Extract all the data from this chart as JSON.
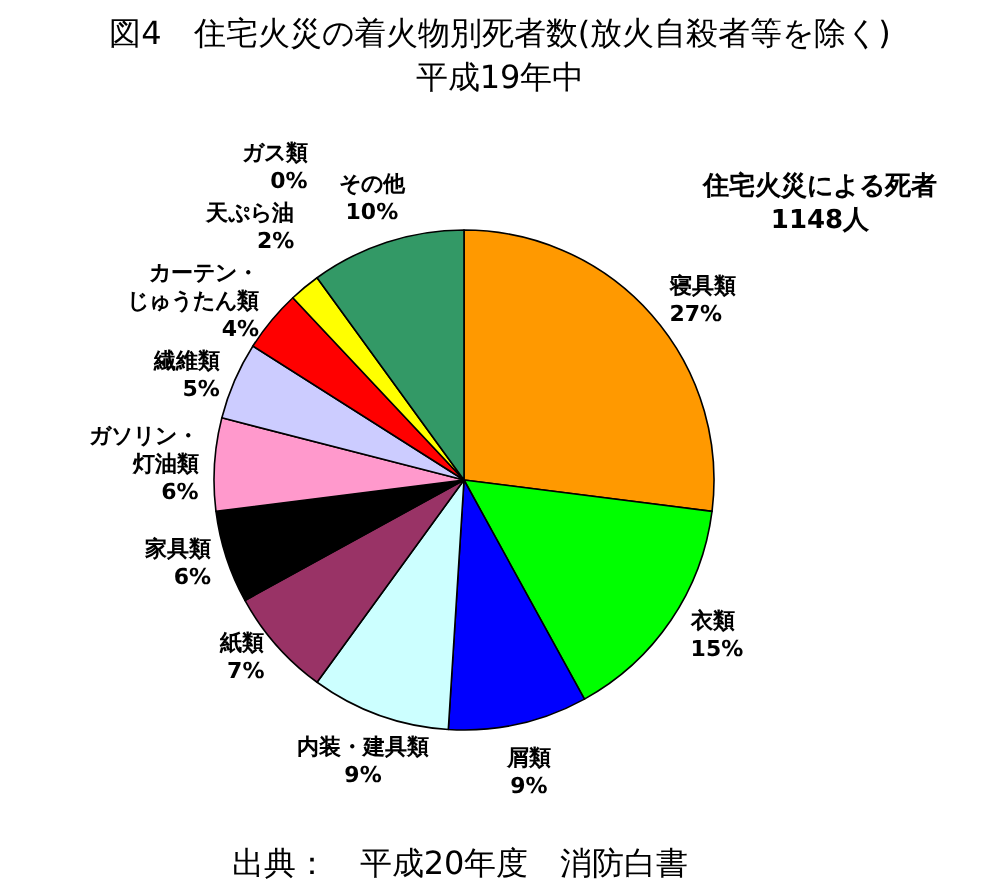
{
  "chart_data": {
    "type": "pie",
    "title": "図4　住宅火災の着火物別死者数(放火自殺者等を除く)",
    "subtitle": "平成19年中",
    "categories": [
      "寝具類",
      "衣類",
      "屑類",
      "内装・建具類",
      "紙類",
      "家具類",
      "ガソリン・灯油類",
      "繊維類",
      "カーテン・じゅうたん類",
      "天ぷら油",
      "ガス類",
      "その他"
    ],
    "values": [
      27,
      15,
      9,
      9,
      7,
      6,
      6,
      5,
      4,
      2,
      0,
      10
    ],
    "colors": [
      "#ff9900",
      "#00ff00",
      "#0000ff",
      "#ccffff",
      "#993366",
      "#000000",
      "#ff99cc",
      "#ccccff",
      "#ff0000",
      "#ffff00",
      null,
      "#339966"
    ],
    "value_labels": [
      "27%",
      "15%",
      "9%",
      "9%",
      "7%",
      "6%",
      "6%",
      "5%",
      "4%",
      "2%",
      "0%",
      "10%"
    ],
    "annotations": [
      "住宅火災による死者\n1148人",
      "出典：　平成20年度　消防白書"
    ]
  }
}
